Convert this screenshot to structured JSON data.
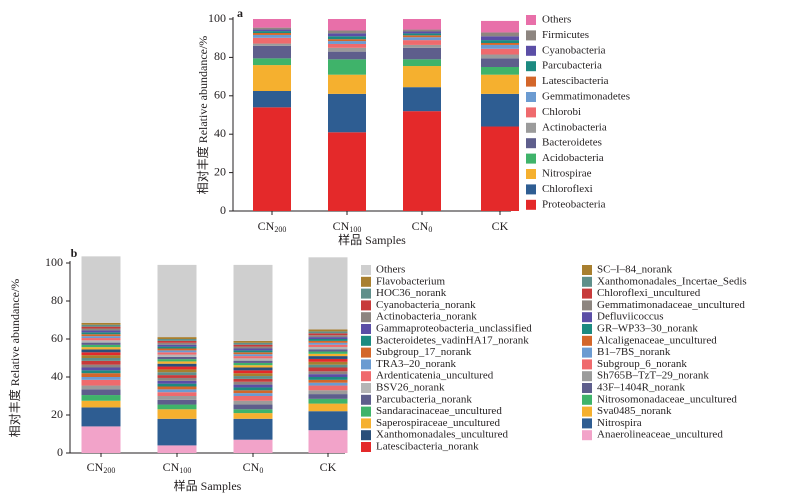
{
  "chart_data": [
    {
      "panel_label": "a",
      "type": "bar",
      "stacked": true,
      "ylabel": "相对丰度 Relative abundance/%",
      "xlabel": "样品 Samples",
      "ylim": [
        0,
        100
      ],
      "yticks": [
        "0",
        "20",
        "40",
        "60",
        "80",
        "100"
      ],
      "categories": [
        {
          "base": "CN",
          "sub": "200"
        },
        {
          "base": "CN",
          "sub": "100"
        },
        {
          "base": "CN",
          "sub": "0"
        },
        {
          "base": "CK",
          "sub": ""
        }
      ],
      "legend_order": [
        "Others",
        "Firmicutes",
        "Cyanobacteria",
        "Parcubacteria",
        "Latescibacteria",
        "Gemmatimonadetes",
        "Chlorobi",
        "Actinobacteria",
        "Bacteroidetes",
        "Acidobacteria",
        "Nitrospirae",
        "Chloroflexi",
        "Proteobacteria"
      ],
      "series": [
        {
          "name": "Proteobacteria",
          "color": "#e4292a",
          "values": [
            54,
            41,
            52,
            44
          ]
        },
        {
          "name": "Chloroflexi",
          "color": "#2e5d92",
          "values": [
            8.5,
            20,
            12.5,
            17
          ]
        },
        {
          "name": "Nitrospirae",
          "color": "#f5b02f",
          "values": [
            13.5,
            10,
            11,
            10
          ]
        },
        {
          "name": "Acidobacteria",
          "color": "#3fb36a",
          "values": [
            3.5,
            8,
            3.5,
            4
          ]
        },
        {
          "name": "Bacteroidetes",
          "color": "#5e5e8c",
          "values": [
            6.5,
            4,
            6,
            4.5
          ]
        },
        {
          "name": "Actinobacteria",
          "color": "#9b9b9b",
          "values": [
            1.2,
            2,
            1.5,
            2
          ]
        },
        {
          "name": "Chlorobi",
          "color": "#ef6a6d",
          "values": [
            3,
            2,
            2.5,
            3
          ]
        },
        {
          "name": "Gemmatimonadetes",
          "color": "#6b9bd1",
          "values": [
            1.5,
            1.5,
            1.5,
            2
          ]
        },
        {
          "name": "Latescibacteria",
          "color": "#d3662a",
          "values": [
            1,
            1,
            1,
            1
          ]
        },
        {
          "name": "Parcubacteria",
          "color": "#1c8a80",
          "values": [
            1,
            1.5,
            1,
            1.5
          ]
        },
        {
          "name": "Cyanobacteria",
          "color": "#5b4ea6",
          "values": [
            0.8,
            1.5,
            1,
            2
          ]
        },
        {
          "name": "Firmicutes",
          "color": "#8d8580",
          "values": [
            1,
            1.5,
            1,
            2
          ]
        },
        {
          "name": "Others",
          "color": "#e86fa9",
          "values": [
            4.5,
            6,
            5.5,
            6
          ]
        }
      ]
    },
    {
      "panel_label": "b",
      "type": "bar",
      "stacked": true,
      "ylabel": "相对丰度 Relative abundance/%",
      "xlabel": "样品 Samples",
      "ylim": [
        0,
        100
      ],
      "yticks": [
        "0",
        "20",
        "40",
        "60",
        "80",
        "100"
      ],
      "categories": [
        {
          "base": "CN",
          "sub": "200"
        },
        {
          "base": "CN",
          "sub": "100"
        },
        {
          "base": "CN",
          "sub": "0"
        },
        {
          "base": "CK",
          "sub": ""
        }
      ],
      "legend_col1": [
        "Others",
        "Flavobacterium",
        "HOC36_norank",
        "Cyanobacteria_norank",
        "Actinobacteria_norank",
        "Gammaproteobacteria_unclassified",
        "Bacteroidetes_vadinHA17_norank",
        "Subgroup_17_norank",
        "TRA3–20_norank",
        "Ardenticatenia_uncultured",
        "BSV26_norank",
        "Parcubacteria_norank",
        "Sandaracinaceae_uncultured",
        "Saperospiraceae_uncultured",
        "Xanthomonadales_uncultured",
        "Latescibacteria_norank"
      ],
      "legend_col2": [
        "SC–I–84_norank",
        "Xanthomonadales_Incertae_Sedis",
        "Chloroflexi_uncultured",
        "Gemmatimonadaceae_uncultured",
        "Defluviicoccus",
        "GR–WP33–30_norank",
        "Alcaligenaceae_uncultured",
        "B1–7BS_norank",
        "Subgroup_6_norank",
        "Sh765B–TzT–29_norank",
        "43F–1404R_norank",
        "Nitrosomonadaceae_uncultured",
        "Sva0485_norank",
        "Nitrospira",
        "Anaerolineaceae_uncultured"
      ],
      "series": [
        {
          "name": "Anaerolineaceae_uncultured",
          "color": "#f2a3c9",
          "values": [
            14,
            4,
            7,
            12
          ]
        },
        {
          "name": "Nitrospira",
          "color": "#2e5d92",
          "values": [
            10,
            14,
            11,
            10
          ]
        },
        {
          "name": "Sva0485_norank",
          "color": "#f5b02f",
          "values": [
            3.5,
            5,
            3,
            4
          ]
        },
        {
          "name": "Nitrosomonadaceae_uncultured",
          "color": "#3fb36a",
          "values": [
            3,
            2.5,
            2,
            2.5
          ]
        },
        {
          "name": "43F–1404R_norank",
          "color": "#5e5e8c",
          "values": [
            3,
            2.5,
            2.5,
            2.5
          ]
        },
        {
          "name": "Sh765B–TzT–29_norank",
          "color": "#9b9b9b",
          "values": [
            2,
            2,
            2,
            2
          ]
        },
        {
          "name": "Subgroup_6_norank",
          "color": "#ef6a6d",
          "values": [
            3,
            2,
            2.5,
            2.5
          ]
        },
        {
          "name": "B1–7BS_norank",
          "color": "#6b9bd1",
          "values": [
            1.5,
            1.5,
            1.5,
            1.5
          ]
        },
        {
          "name": "Alcaligenaceae_uncultured",
          "color": "#d3662a",
          "values": [
            2,
            1.5,
            1.5,
            1.5
          ]
        },
        {
          "name": "GR–WP33–30_norank",
          "color": "#1c8a80",
          "values": [
            1.5,
            1.5,
            1.5,
            1.5
          ]
        },
        {
          "name": "Defluviicoccus",
          "color": "#5b4ea6",
          "values": [
            1.5,
            1.5,
            1.5,
            1.5
          ]
        },
        {
          "name": "Gemmatimonadaceae_uncultured",
          "color": "#8d8580",
          "values": [
            1.5,
            1.5,
            1.5,
            1.5
          ]
        },
        {
          "name": "Chloroflexi_uncultured",
          "color": "#c73a3a",
          "values": [
            2,
            1.5,
            1.5,
            2
          ]
        },
        {
          "name": "Xanthomonadales_Incertae_Sedis",
          "color": "#5f8f8a",
          "values": [
            1.5,
            1.5,
            1.5,
            1.5
          ]
        },
        {
          "name": "SC–I–84_norank",
          "color": "#a87f2f",
          "values": [
            1.5,
            1.5,
            1.5,
            1.5
          ]
        },
        {
          "name": "Latescibacteria_norank",
          "color": "#e4292a",
          "values": [
            1.5,
            1.5,
            1.5,
            1.5
          ]
        },
        {
          "name": "Xanthomonadales_uncultured",
          "color": "#2a4f7a",
          "values": [
            1.5,
            1.5,
            1.5,
            1.5
          ]
        },
        {
          "name": "Saperospiraceae_uncultured",
          "color": "#f5b02f",
          "values": [
            1.2,
            1.2,
            1.2,
            1.2
          ]
        },
        {
          "name": "Sandaracinaceae_uncultured",
          "color": "#3fb36a",
          "values": [
            1.2,
            1.2,
            1.2,
            1.2
          ]
        },
        {
          "name": "Parcubacteria_norank",
          "color": "#5e5e8c",
          "values": [
            1.2,
            1.2,
            1.2,
            1.2
          ]
        },
        {
          "name": "BSV26_norank",
          "color": "#b5b5b5",
          "values": [
            1.2,
            1.2,
            1.2,
            1.2
          ]
        },
        {
          "name": "Ardenticatenia_uncultured",
          "color": "#ef6a6d",
          "values": [
            1.2,
            1.2,
            1.2,
            1.2
          ]
        },
        {
          "name": "TRA3–20_norank",
          "color": "#6b9bd1",
          "values": [
            1,
            1,
            1,
            1
          ]
        },
        {
          "name": "Subgroup_17_norank",
          "color": "#d3662a",
          "values": [
            1,
            1,
            1,
            1
          ]
        },
        {
          "name": "Bacteroidetes_vadinHA17_norank",
          "color": "#1c8a80",
          "values": [
            1,
            1,
            1,
            1
          ]
        },
        {
          "name": "Gammaproteobacteria_unclassified",
          "color": "#5b4ea6",
          "values": [
            1,
            1,
            1,
            1
          ]
        },
        {
          "name": "Actinobacteria_norank",
          "color": "#8d8580",
          "values": [
            1,
            1,
            1,
            1
          ]
        },
        {
          "name": "Cyanobacteria_norank",
          "color": "#c73a3a",
          "values": [
            1,
            1,
            1,
            1
          ]
        },
        {
          "name": "HOC36_norank",
          "color": "#5f8f8a",
          "values": [
            1,
            1,
            1,
            1
          ]
        },
        {
          "name": "Flavobacterium",
          "color": "#a87f2f",
          "values": [
            1,
            1,
            1,
            1
          ]
        },
        {
          "name": "Others",
          "color": "#cfcfcf",
          "values": [
            35,
            38,
            40,
            38
          ]
        }
      ]
    }
  ]
}
